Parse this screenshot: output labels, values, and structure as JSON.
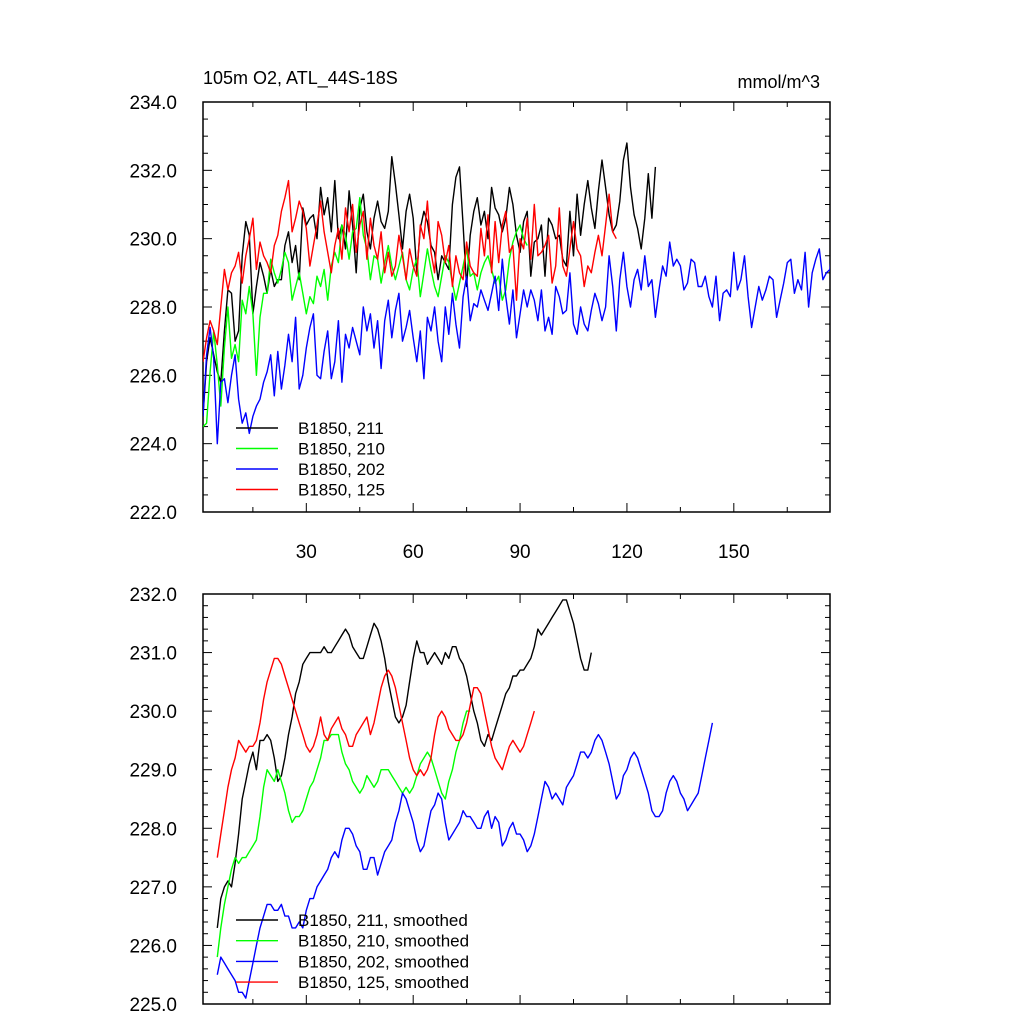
{
  "colors": {
    "s211": "#000000",
    "s210": "#00ff00",
    "s202": "#0000ff",
    "s125": "#ff0000"
  },
  "chart_data": [
    {
      "type": "line",
      "title": "105m O2, ATL_44S-18S",
      "units": "mmol/m^3",
      "xlim": [
        1,
        177
      ],
      "ylim": [
        222,
        234
      ],
      "yticks": [
        "222.0",
        "224.0",
        "226.0",
        "228.0",
        "230.0",
        "232.0",
        "234.0"
      ],
      "xticks": [
        "30",
        "60",
        "90",
        "120",
        "150"
      ],
      "legend_position": "lower-left",
      "series": [
        {
          "name": "B1850, 211",
          "color": "#000000",
          "x_start": 1,
          "values": [
            224.8,
            226.4,
            227.1,
            226.6,
            226.1,
            225.8,
            227.3,
            228.5,
            228.4,
            227.0,
            227.3,
            229.5,
            230.5,
            230.1,
            227.8,
            228.6,
            229.3,
            228.9,
            228.4,
            229.1,
            228.6,
            228.8,
            228.8,
            229.8,
            230.2,
            229.3,
            229.8,
            228.8,
            230.9,
            230.4,
            230.6,
            230.7,
            230.0,
            231.5,
            230.7,
            231.2,
            230.2,
            231.7,
            230.0,
            230.4,
            229.7,
            231.4,
            230.4,
            229.0,
            230.9,
            231.3,
            230.2,
            229.7,
            230.6,
            231.1,
            230.5,
            230.3,
            230.8,
            232.4,
            231.6,
            230.7,
            229.7,
            230.8,
            231.3,
            230.6,
            229.0,
            230.3,
            230.8,
            230.5,
            229.8,
            229.6,
            228.8,
            229.5,
            229.3,
            229.1,
            231.0,
            231.8,
            232.1,
            230.4,
            228.6,
            230.1,
            230.8,
            231.2,
            230.4,
            230.8,
            230.0,
            231.5,
            230.9,
            230.7,
            230.2,
            230.6,
            231.5,
            231.0,
            230.1,
            229.6,
            230.5,
            230.8,
            228.9,
            229.9,
            230.0,
            230.4,
            228.9,
            230.6,
            230.4,
            230.0,
            230.1,
            229.4,
            229.2,
            230.8,
            229.5,
            231.3,
            230.1,
            231.0,
            231.7,
            230.9,
            230.3,
            231.4,
            232.3,
            231.5,
            230.7,
            230.2,
            230.4,
            231.1,
            232.3,
            232.8,
            231.5,
            230.7,
            230.3,
            229.7,
            230.6,
            231.9,
            230.6,
            232.1
          ]
        },
        {
          "name": "B1850, 210",
          "color": "#00ff00",
          "x_start": 1,
          "values": [
            224.5,
            224.6,
            226.1,
            227.3,
            226.3,
            225.1,
            226.8,
            228.0,
            226.5,
            226.9,
            226.4,
            228.2,
            227.8,
            228.6,
            227.8,
            226.0,
            227.7,
            228.4,
            228.4,
            229.4,
            229.0,
            228.7,
            229.1,
            229.6,
            229.3,
            228.2,
            228.6,
            229.0,
            228.4,
            227.8,
            228.3,
            228.1,
            228.9,
            228.6,
            229.1,
            228.2,
            229.2,
            229.6,
            229.3,
            230.4,
            230.1,
            229.4,
            230.2,
            230.3,
            231.2,
            230.1,
            229.7,
            228.8,
            229.5,
            229.4,
            228.7,
            229.3,
            229.8,
            229.2,
            228.8,
            229.2,
            229.6,
            228.8,
            228.5,
            229.1,
            229.4,
            228.3,
            229.0,
            229.7,
            229.1,
            228.6,
            228.3,
            228.9,
            229.5,
            229.3,
            228.7,
            228.2,
            228.7,
            229.2,
            229.7,
            228.9,
            229.0,
            228.5,
            229.0,
            229.3,
            229.5,
            229.1,
            228.7,
            228.9,
            228.2,
            228.5,
            229.4,
            229.9,
            230.2,
            230.4,
            230.0,
            229.8
          ]
        },
        {
          "name": "B1850, 202",
          "color": "#0000ff",
          "x_start": 1,
          "values": [
            224.8,
            226.6,
            227.4,
            226.5,
            224.0,
            225.8,
            225.9,
            225.2,
            226.0,
            226.6,
            225.3,
            224.6,
            224.9,
            224.3,
            224.8,
            225.1,
            225.3,
            225.8,
            226.1,
            226.6,
            225.4,
            226.7,
            225.6,
            226.3,
            227.2,
            226.4,
            227.7,
            225.6,
            226.0,
            226.8,
            227.4,
            227.8,
            226.0,
            225.9,
            226.7,
            227.3,
            225.9,
            226.4,
            227.6,
            225.8,
            227.2,
            226.8,
            227.4,
            227.0,
            226.6,
            228.0,
            227.3,
            227.8,
            226.8,
            227.6,
            226.2,
            227.6,
            228.2,
            227.1,
            227.9,
            228.4,
            227.0,
            227.4,
            227.9,
            227.1,
            226.4,
            227.3,
            225.9,
            227.7,
            227.3,
            228.0,
            227.0,
            226.4,
            228.0,
            227.2,
            228.4,
            227.5,
            226.8,
            228.3,
            228.9,
            227.6,
            228.1,
            228.0,
            228.5,
            228.2,
            227.9,
            228.4,
            228.9,
            227.9,
            229.4,
            228.3,
            227.5,
            228.5,
            227.1,
            227.8,
            228.5,
            228.0,
            228.5,
            228.2,
            227.6,
            228.5,
            227.3,
            227.7,
            227.2,
            228.6,
            228.3,
            227.8,
            227.9,
            229.0,
            227.5,
            227.2,
            228.0,
            227.5,
            227.3,
            227.9,
            228.4,
            228.1,
            227.6,
            228.0,
            229.5,
            228.6,
            227.3,
            228.8,
            229.6,
            228.6,
            228.0,
            228.8,
            229.1,
            228.5,
            229.5,
            228.6,
            228.8,
            227.7,
            228.5,
            229.2,
            228.9,
            229.9,
            229.2,
            229.4,
            229.2,
            228.5,
            228.7,
            229.4,
            229.3,
            228.6,
            228.6,
            228.9,
            228.3,
            228.0,
            228.9,
            227.6,
            228.4,
            228.5,
            228.3,
            229.6,
            228.5,
            228.8,
            229.5,
            228.3,
            227.4,
            228.0,
            228.6,
            228.2,
            228.5,
            228.9,
            228.8,
            227.7,
            228.2,
            228.7,
            229.3,
            229.4,
            228.4,
            228.8,
            228.5,
            229.6,
            228.0,
            229.0,
            229.4,
            229.7,
            228.8,
            229.0,
            229.1,
            230.1,
            230.2,
            229.3,
            230.0,
            230.8
          ]
        },
        {
          "name": "B1850, 125",
          "color": "#ff0000",
          "x_start": 1,
          "values": [
            226.4,
            227.1,
            227.6,
            227.3,
            226.9,
            228.0,
            229.1,
            228.5,
            229.0,
            229.2,
            229.6,
            228.7,
            229.5,
            230.0,
            230.6,
            229.1,
            229.9,
            229.5,
            229.3,
            229.0,
            229.8,
            230.1,
            230.8,
            231.2,
            231.7,
            230.2,
            230.6,
            231.1,
            230.8,
            230.3,
            229.2,
            229.8,
            230.4,
            231.1,
            230.2,
            229.6,
            229.0,
            229.8,
            230.3,
            229.4,
            230.9,
            230.2,
            231.0,
            229.6,
            230.4,
            230.8,
            229.4,
            230.6,
            229.8,
            229.4,
            230.2,
            229.0,
            229.6,
            228.9,
            229.2,
            230.1,
            229.5,
            228.8,
            229.7,
            229.2,
            228.9,
            230.4,
            230.0,
            231.1,
            229.6,
            229.0,
            230.5,
            230.1,
            229.3,
            229.8,
            228.6,
            229.5,
            229.0,
            228.8,
            229.9,
            229.2,
            229.0,
            228.9,
            230.3,
            229.5,
            230.7,
            229.0,
            230.5,
            229.3,
            230.4,
            230.8,
            229.6,
            229.8,
            228.2,
            230.0,
            229.7,
            230.6,
            229.4,
            231.0,
            229.5,
            229.6,
            229.8,
            230.1,
            228.7,
            229.2,
            230.9,
            229.2,
            228.9,
            229.7,
            230.5,
            229.7,
            229.5,
            228.6,
            229.2,
            229.0,
            229.6,
            230.1,
            229.5,
            230.4,
            231.3,
            230.2,
            230.0
          ]
        }
      ]
    },
    {
      "type": "line",
      "xlim": [
        1,
        177
      ],
      "ylim": [
        225,
        232
      ],
      "yticks": [
        "225.0",
        "226.0",
        "227.0",
        "228.0",
        "229.0",
        "230.0",
        "231.0",
        "232.0"
      ],
      "legend_position": "lower-left",
      "series": [
        {
          "name": "B1850, 211, smoothed",
          "color": "#000000",
          "x_start": 5,
          "values": [
            226.3,
            226.8,
            227.0,
            227.1,
            227.0,
            227.4,
            227.9,
            228.5,
            228.8,
            229.1,
            229.3,
            229.0,
            229.5,
            229.5,
            229.6,
            229.5,
            229.2,
            228.8,
            228.9,
            229.2,
            229.6,
            229.9,
            230.3,
            230.5,
            230.8,
            230.9,
            231.0,
            231.0,
            231.0,
            231.0,
            231.1,
            231.0,
            231.0,
            231.1,
            231.2,
            231.3,
            231.4,
            231.3,
            231.1,
            231.0,
            230.9,
            230.9,
            231.1,
            231.3,
            231.5,
            231.4,
            231.2,
            230.9,
            230.5,
            230.2,
            229.9,
            229.8,
            229.9,
            230.1,
            230.5,
            230.9,
            231.2,
            231.0,
            231.0,
            230.8,
            230.9,
            231.0,
            230.9,
            230.8,
            231.0,
            230.9,
            231.1,
            231.1,
            230.9,
            230.8,
            230.6,
            230.3,
            230.0,
            229.8,
            229.5,
            229.4,
            229.6,
            229.5,
            229.7,
            229.9,
            230.1,
            230.3,
            230.4,
            230.6,
            230.6,
            230.7,
            230.7,
            230.8,
            230.9,
            231.1,
            231.4,
            231.3,
            231.4,
            231.5,
            231.6,
            231.7,
            231.8,
            231.9,
            231.9,
            231.7,
            231.5,
            231.2,
            230.9,
            230.7,
            230.7,
            231.0
          ]
        },
        {
          "name": "B1850, 210, smoothed",
          "color": "#00ff00",
          "x_start": 5,
          "values": [
            225.8,
            226.3,
            226.7,
            227.0,
            227.3,
            227.5,
            227.4,
            227.5,
            227.5,
            227.6,
            227.7,
            227.8,
            228.2,
            228.7,
            229.0,
            228.9,
            228.8,
            229.0,
            228.8,
            228.6,
            228.3,
            228.1,
            228.2,
            228.2,
            228.3,
            228.5,
            228.7,
            228.8,
            229.0,
            229.2,
            229.5,
            229.5,
            229.6,
            229.6,
            229.6,
            229.3,
            229.1,
            229.0,
            228.8,
            228.7,
            228.6,
            228.7,
            228.9,
            228.8,
            228.7,
            228.8,
            229.0,
            229.0,
            229.0,
            228.9,
            228.8,
            228.7,
            228.6,
            228.7,
            228.6,
            228.7,
            228.9,
            229.1,
            229.2,
            229.3,
            229.2,
            229.0,
            228.8,
            228.6,
            228.5,
            228.8,
            229.0,
            229.3,
            229.5,
            229.8,
            230.0,
            230.0
          ]
        },
        {
          "name": "B1850, 202, smoothed",
          "color": "#0000ff",
          "x_start": 5,
          "values": [
            225.5,
            225.8,
            225.7,
            225.6,
            225.5,
            225.4,
            225.2,
            225.2,
            225.1,
            225.4,
            225.7,
            226.0,
            226.3,
            226.5,
            226.7,
            226.7,
            226.6,
            226.6,
            226.7,
            226.5,
            226.5,
            226.3,
            226.3,
            226.4,
            226.3,
            226.6,
            226.8,
            226.8,
            227.0,
            227.1,
            227.2,
            227.3,
            227.5,
            227.6,
            227.5,
            227.8,
            228.0,
            228.0,
            227.9,
            227.7,
            227.6,
            227.3,
            227.3,
            227.5,
            227.5,
            227.2,
            227.4,
            227.6,
            227.7,
            227.8,
            228.1,
            228.3,
            228.6,
            228.5,
            228.3,
            228.1,
            227.8,
            227.6,
            227.7,
            228.0,
            228.3,
            228.4,
            228.6,
            228.5,
            228.1,
            227.8,
            227.9,
            228.0,
            228.1,
            228.3,
            228.2,
            228.2,
            228.1,
            228.0,
            228.0,
            228.2,
            228.3,
            228.0,
            228.2,
            228.1,
            227.7,
            227.8,
            228.0,
            228.1,
            227.9,
            227.9,
            227.8,
            227.6,
            227.7,
            227.9,
            228.2,
            228.5,
            228.8,
            228.7,
            228.5,
            228.6,
            228.5,
            228.4,
            228.7,
            228.8,
            228.9,
            229.1,
            229.3,
            229.3,
            229.2,
            229.3,
            229.5,
            229.6,
            229.5,
            229.3,
            229.1,
            228.8,
            228.5,
            228.6,
            228.9,
            229.0,
            229.2,
            229.3,
            229.2,
            229.0,
            228.8,
            228.6,
            228.3,
            228.2,
            228.2,
            228.3,
            228.6,
            228.8,
            228.9,
            228.8,
            228.6,
            228.5,
            228.3,
            228.4,
            228.5,
            228.6,
            228.9,
            229.2,
            229.5,
            229.8
          ]
        },
        {
          "name": "B1850, 125, smoothed",
          "color": "#ff0000",
          "x_start": 5,
          "values": [
            227.5,
            227.9,
            228.3,
            228.7,
            229.0,
            229.2,
            229.5,
            229.4,
            229.3,
            229.4,
            229.4,
            229.5,
            229.8,
            230.2,
            230.5,
            230.7,
            230.9,
            230.9,
            230.8,
            230.6,
            230.4,
            230.2,
            230.0,
            229.8,
            229.6,
            229.4,
            229.3,
            229.4,
            229.6,
            229.9,
            229.6,
            229.5,
            229.7,
            229.8,
            229.9,
            229.7,
            229.6,
            229.4,
            229.4,
            229.6,
            229.7,
            229.8,
            229.9,
            229.6,
            229.8,
            230.1,
            230.4,
            230.6,
            230.7,
            230.6,
            230.4,
            230.1,
            229.8,
            229.5,
            229.2,
            229.0,
            228.9,
            229.0,
            228.9,
            229.0,
            229.2,
            229.6,
            229.9,
            230.0,
            229.9,
            229.7,
            229.6,
            229.5,
            229.5,
            229.6,
            229.8,
            230.1,
            230.4,
            230.4,
            230.3,
            230.0,
            229.7,
            229.4,
            229.2,
            229.1,
            229.0,
            229.2,
            229.4,
            229.5,
            229.4,
            229.3,
            229.4,
            229.6,
            229.8,
            230.0
          ]
        }
      ]
    }
  ]
}
